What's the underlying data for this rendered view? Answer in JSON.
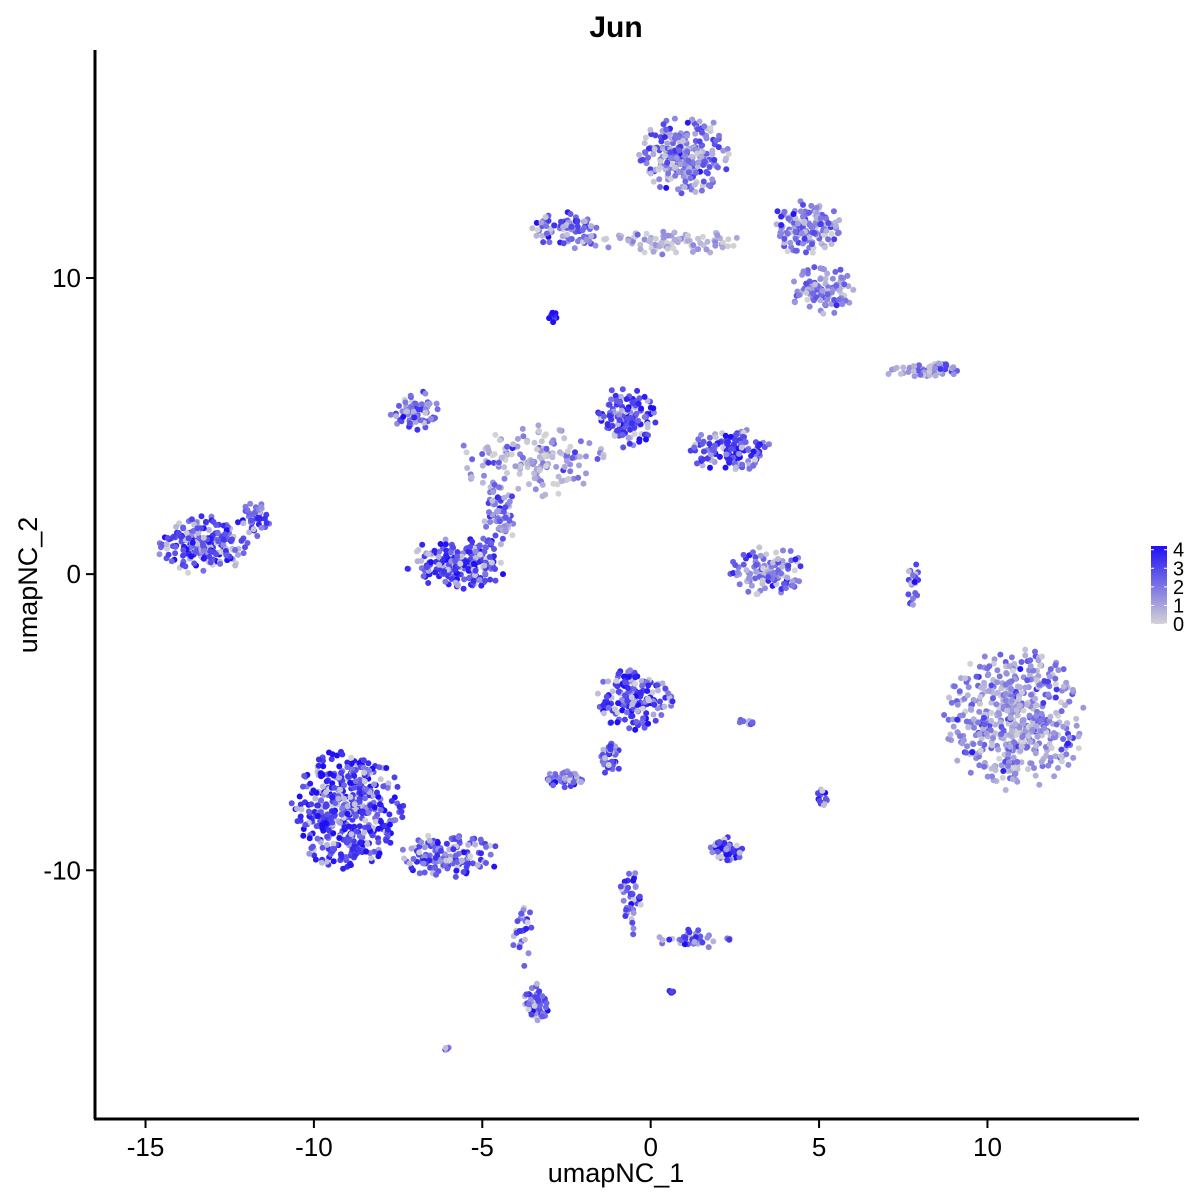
{
  "chart_data": {
    "type": "scatter",
    "title": "Jun",
    "xlabel": "umapNC_1",
    "ylabel": "umapNC_2",
    "xlim": [
      -16.5,
      14.5
    ],
    "ylim": [
      -18.4,
      17.7
    ],
    "x_ticks": [
      -15,
      -10,
      -5,
      0,
      5,
      10
    ],
    "x_tick_labels": [
      "-15",
      "-10",
      "-5",
      "0",
      "5",
      "10"
    ],
    "y_ticks": [
      -10,
      0,
      10
    ],
    "y_tick_labels": [
      "-10",
      "0",
      "10"
    ],
    "grid": false,
    "color_scale": {
      "low": "#d3d3d3",
      "high": "#1f0ff5",
      "min": 0,
      "max": 4.2,
      "ticks": [
        0,
        1,
        2,
        3,
        4
      ],
      "tick_labels": [
        "0",
        "1",
        "2",
        "3",
        "4"
      ],
      "legend_position": "right"
    },
    "clusters": [
      {
        "id": "top-right-upper",
        "cx": 1.0,
        "cy": 14.2,
        "rx": 1.3,
        "ry": 1.3,
        "n": 260,
        "expr": 2.0
      },
      {
        "id": "top-right-right",
        "cx": 4.6,
        "cy": 11.7,
        "rx": 1.0,
        "ry": 0.9,
        "n": 150,
        "expr": 1.9
      },
      {
        "id": "top-right-lower",
        "cx": 5.1,
        "cy": 9.6,
        "rx": 0.9,
        "ry": 0.8,
        "n": 110,
        "expr": 1.8
      },
      {
        "id": "top-left-arm",
        "cx": -2.5,
        "cy": 11.6,
        "rx": 1.0,
        "ry": 0.6,
        "n": 90,
        "expr": 2.4
      },
      {
        "id": "top-bridge",
        "cx": 0.5,
        "cy": 11.2,
        "rx": 2.2,
        "ry": 0.4,
        "n": 90,
        "expr": 0.8
      },
      {
        "id": "small-dot",
        "cx": -2.9,
        "cy": 8.7,
        "rx": 0.12,
        "ry": 0.2,
        "n": 10,
        "expr": 3.9
      },
      {
        "id": "right-strip",
        "cx": 8.2,
        "cy": 6.9,
        "rx": 1.3,
        "ry": 0.25,
        "n": 60,
        "expr": 1.8
      },
      {
        "id": "center-left-arm",
        "cx": -7.0,
        "cy": 5.5,
        "rx": 0.7,
        "ry": 0.7,
        "n": 80,
        "expr": 2.2
      },
      {
        "id": "center-right-arm",
        "cx": 2.3,
        "cy": 4.2,
        "rx": 1.3,
        "ry": 0.7,
        "n": 140,
        "expr": 2.9
      },
      {
        "id": "center-upper-right",
        "cx": -0.7,
        "cy": 5.3,
        "rx": 0.9,
        "ry": 1.0,
        "n": 130,
        "expr": 3.0
      },
      {
        "id": "center-body",
        "cx": -3.5,
        "cy": 3.8,
        "rx": 2.2,
        "ry": 1.2,
        "n": 160,
        "expr": 1.2
      },
      {
        "id": "center-bottom-loop",
        "cx": -5.7,
        "cy": 0.4,
        "rx": 1.5,
        "ry": 0.9,
        "n": 220,
        "expr": 2.9
      },
      {
        "id": "center-stem",
        "cx": -4.5,
        "cy": 2.0,
        "rx": 0.5,
        "ry": 1.1,
        "n": 60,
        "expr": 2.0
      },
      {
        "id": "left-cluster",
        "cx": -13.3,
        "cy": 1.0,
        "rx": 1.3,
        "ry": 1.0,
        "n": 230,
        "expr": 3.0
      },
      {
        "id": "left-cluster-tip",
        "cx": -11.8,
        "cy": 1.8,
        "rx": 0.5,
        "ry": 0.6,
        "n": 40,
        "expr": 2.5
      },
      {
        "id": "mid-right-small",
        "cx": 3.5,
        "cy": 0.1,
        "rx": 1.1,
        "ry": 0.8,
        "n": 110,
        "expr": 2.0
      },
      {
        "id": "right-big",
        "cx": 10.8,
        "cy": -4.9,
        "rx": 2.0,
        "ry": 2.3,
        "n": 550,
        "expr": 1.6
      },
      {
        "id": "right-thin",
        "cx": 7.8,
        "cy": -0.2,
        "rx": 0.2,
        "ry": 0.9,
        "n": 20,
        "expr": 2.6
      },
      {
        "id": "mid-cluster",
        "cx": -0.5,
        "cy": -4.2,
        "rx": 1.1,
        "ry": 1.1,
        "n": 170,
        "expr": 3.0
      },
      {
        "id": "mid-arm-down",
        "cx": -1.2,
        "cy": -6.2,
        "rx": 0.3,
        "ry": 0.6,
        "n": 40,
        "expr": 2.8
      },
      {
        "id": "mid-left-small",
        "cx": -2.5,
        "cy": -6.9,
        "rx": 0.6,
        "ry": 0.3,
        "n": 50,
        "expr": 2.2
      },
      {
        "id": "bottom-left-big",
        "cx": -9.0,
        "cy": -8.0,
        "rx": 1.6,
        "ry": 2.0,
        "n": 480,
        "expr": 3.3
      },
      {
        "id": "bottom-left-arm",
        "cx": -6.0,
        "cy": -9.5,
        "rx": 1.6,
        "ry": 0.7,
        "n": 140,
        "expr": 2.8
      },
      {
        "id": "bottom-left-tail",
        "cx": -3.4,
        "cy": -14.5,
        "rx": 0.35,
        "ry": 0.7,
        "n": 60,
        "expr": 3.1
      },
      {
        "id": "bottom-tail-line",
        "cx": -3.8,
        "cy": -12.0,
        "rx": 0.3,
        "ry": 1.2,
        "n": 25,
        "expr": 2.5
      },
      {
        "id": "bottom-mid-small",
        "cx": 2.3,
        "cy": -9.3,
        "rx": 0.5,
        "ry": 0.4,
        "n": 60,
        "expr": 3.0
      },
      {
        "id": "bottom-y-arm-1",
        "cx": -0.6,
        "cy": -11.0,
        "rx": 0.3,
        "ry": 1.2,
        "n": 40,
        "expr": 2.4
      },
      {
        "id": "bottom-y-arm-2",
        "cx": 1.3,
        "cy": -12.3,
        "rx": 1.2,
        "ry": 0.3,
        "n": 40,
        "expr": 2.6
      },
      {
        "id": "small-5-7",
        "cx": 5.1,
        "cy": -7.5,
        "rx": 0.15,
        "ry": 0.3,
        "n": 15,
        "expr": 3.2
      },
      {
        "id": "small-3-5",
        "cx": 2.8,
        "cy": -5.0,
        "rx": 0.3,
        "ry": 0.1,
        "n": 8,
        "expr": 3.0
      },
      {
        "id": "small-bottom-far",
        "cx": -6.0,
        "cy": -16.0,
        "rx": 0.15,
        "ry": 0.1,
        "n": 5,
        "expr": 3.2
      },
      {
        "id": "small-bottom-mid",
        "cx": 0.6,
        "cy": -14.1,
        "rx": 0.1,
        "ry": 0.1,
        "n": 5,
        "expr": 3.5
      }
    ]
  }
}
